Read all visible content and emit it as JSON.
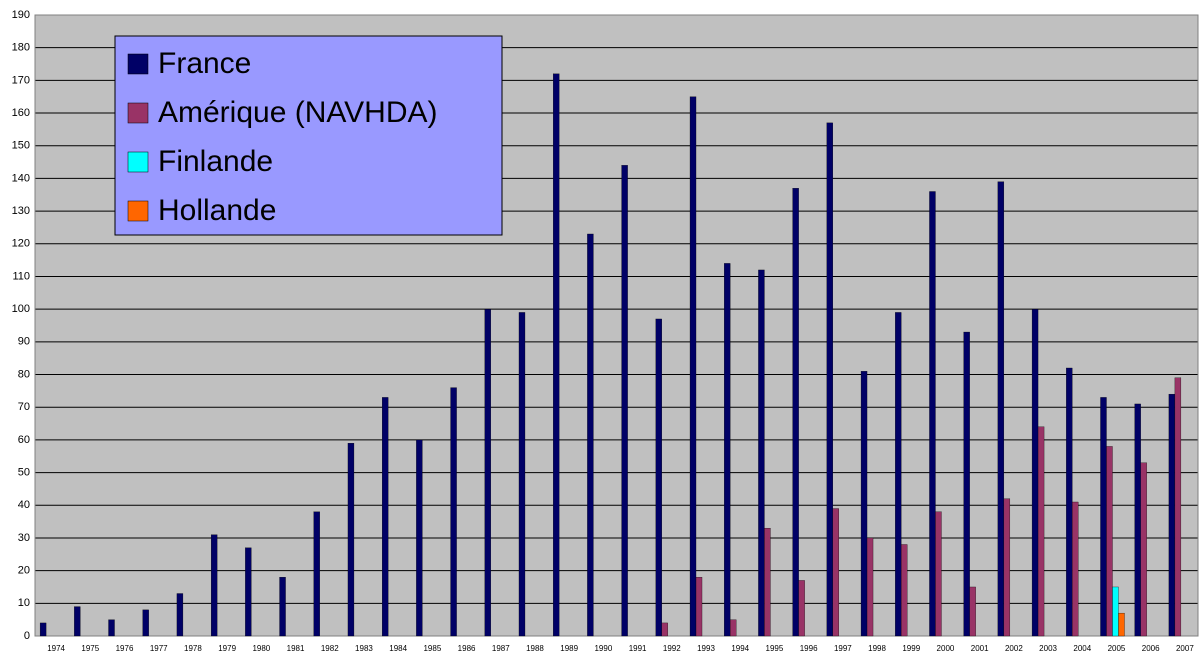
{
  "chart_data": {
    "type": "bar",
    "categories": [
      "1974",
      "1975",
      "1976",
      "1977",
      "1978",
      "1979",
      "1980",
      "1981",
      "1982",
      "1983",
      "1984",
      "1985",
      "1986",
      "1987",
      "1988",
      "1989",
      "1990",
      "1991",
      "1992",
      "1993",
      "1994",
      "1995",
      "1996",
      "1997",
      "1998",
      "1999",
      "2000",
      "2001",
      "2002",
      "2003",
      "2004",
      "2005",
      "2006",
      "2007"
    ],
    "series": [
      {
        "name": "France",
        "color": "#000066",
        "values": [
          4,
          9,
          5,
          8,
          13,
          31,
          27,
          18,
          38,
          59,
          73,
          60,
          76,
          100,
          99,
          172,
          123,
          144,
          97,
          165,
          114,
          112,
          137,
          157,
          81,
          99,
          136,
          93,
          139,
          100,
          82,
          73,
          71,
          74
        ]
      },
      {
        "name": "Amérique (NAVHDA)",
        "color": "#993366",
        "values": [
          null,
          null,
          null,
          null,
          null,
          null,
          null,
          null,
          null,
          null,
          null,
          null,
          null,
          null,
          null,
          null,
          null,
          null,
          4,
          18,
          5,
          33,
          17,
          39,
          30,
          28,
          38,
          15,
          42,
          64,
          41,
          58,
          53,
          79
        ]
      },
      {
        "name": "Finlande",
        "color": "#00ffff",
        "values": [
          null,
          null,
          null,
          null,
          null,
          null,
          null,
          null,
          null,
          null,
          null,
          null,
          null,
          null,
          null,
          null,
          null,
          null,
          null,
          null,
          null,
          null,
          null,
          null,
          null,
          null,
          null,
          null,
          null,
          null,
          null,
          15,
          null,
          null
        ]
      },
      {
        "name": "Hollande",
        "color": "#ff6600",
        "values": [
          null,
          null,
          null,
          null,
          null,
          null,
          null,
          null,
          null,
          null,
          null,
          null,
          null,
          null,
          null,
          null,
          null,
          null,
          null,
          null,
          null,
          null,
          null,
          null,
          null,
          null,
          null,
          null,
          null,
          null,
          null,
          7,
          null,
          null
        ]
      }
    ],
    "ylim": [
      0,
      190
    ],
    "yticks": [
      0,
      10,
      20,
      30,
      40,
      50,
      60,
      70,
      80,
      90,
      100,
      110,
      120,
      130,
      140,
      150,
      160,
      170,
      180,
      190
    ],
    "grid": true
  }
}
